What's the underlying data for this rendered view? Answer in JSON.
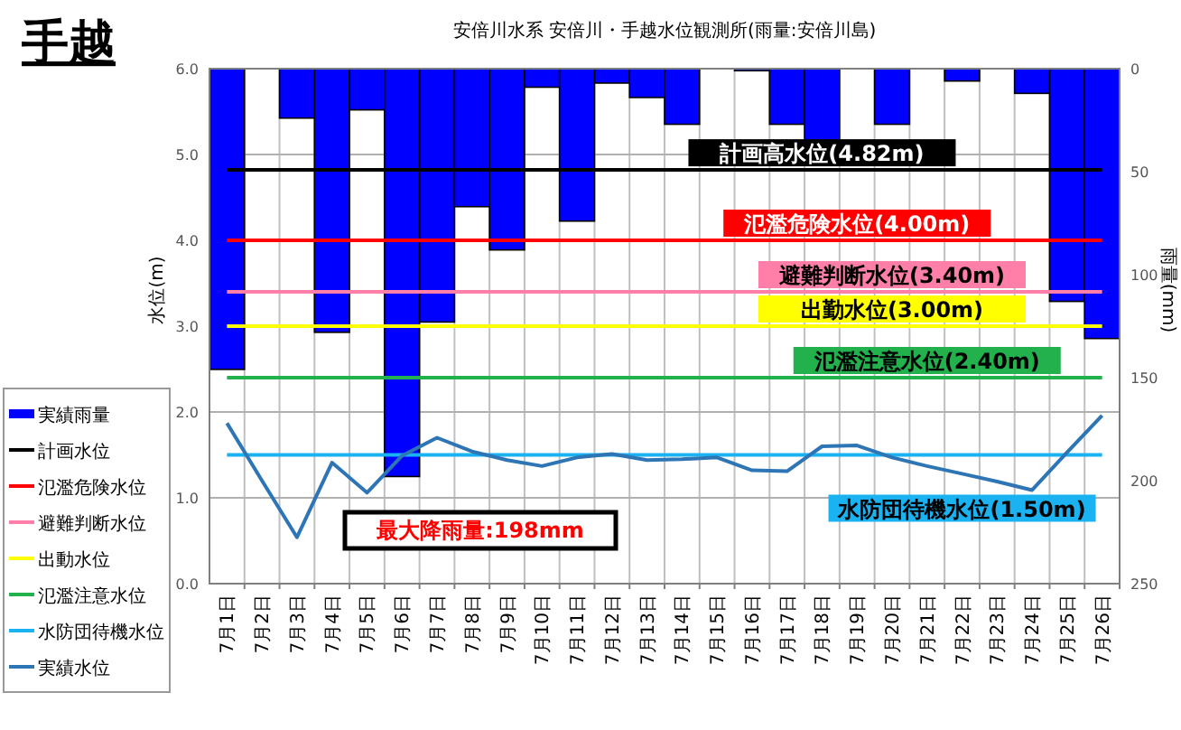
{
  "chart_data": {
    "type": "bar",
    "title": "手越",
    "subtitle": "安倍川水系 安倍川・手越水位観測所(雨量:安倍川島)",
    "ylabel": "水位(m)",
    "y2label": "雨量(mm)",
    "categories": [
      "7月1日",
      "7月2日",
      "7月3日",
      "7月4日",
      "7月5日",
      "7月6日",
      "7月7日",
      "7月8日",
      "7月9日",
      "7月10日",
      "7月11日",
      "7月12日",
      "7月13日",
      "7月14日",
      "7月15日",
      "7月16日",
      "7月17日",
      "7月18日",
      "7月19日",
      "7月20日",
      "7月21日",
      "7月22日",
      "7月23日",
      "7月24日",
      "7月25日",
      "7月26日"
    ],
    "series": [
      {
        "name": "実績雨量",
        "type": "bar",
        "axis": "y2",
        "color": "#0000ff",
        "values": [
          146,
          0,
          24,
          128,
          20,
          198,
          123,
          67,
          88,
          9,
          74,
          7,
          14,
          27,
          0,
          1,
          27,
          36,
          0,
          27,
          0,
          6,
          0,
          12,
          113,
          131
        ]
      },
      {
        "name": "計画水位",
        "type": "line",
        "color": "#000000",
        "values": [
          4.82,
          4.82,
          4.82,
          4.82,
          4.82,
          4.82,
          4.82,
          4.82,
          4.82,
          4.82,
          4.82,
          4.82,
          4.82,
          4.82,
          4.82,
          4.82,
          4.82,
          4.82,
          4.82,
          4.82,
          4.82,
          4.82,
          4.82,
          4.82,
          4.82,
          4.82
        ]
      },
      {
        "name": "氾濫危険水位",
        "type": "line",
        "color": "#ff0000",
        "values": [
          4.0,
          4.0,
          4.0,
          4.0,
          4.0,
          4.0,
          4.0,
          4.0,
          4.0,
          4.0,
          4.0,
          4.0,
          4.0,
          4.0,
          4.0,
          4.0,
          4.0,
          4.0,
          4.0,
          4.0,
          4.0,
          4.0,
          4.0,
          4.0,
          4.0,
          4.0
        ]
      },
      {
        "name": "避難判断水位",
        "type": "line",
        "color": "#ff7fa8",
        "values": [
          3.4,
          3.4,
          3.4,
          3.4,
          3.4,
          3.4,
          3.4,
          3.4,
          3.4,
          3.4,
          3.4,
          3.4,
          3.4,
          3.4,
          3.4,
          3.4,
          3.4,
          3.4,
          3.4,
          3.4,
          3.4,
          3.4,
          3.4,
          3.4,
          3.4,
          3.4
        ]
      },
      {
        "name": "出動水位",
        "type": "line",
        "color": "#ffff00",
        "values": [
          3.0,
          3.0,
          3.0,
          3.0,
          3.0,
          3.0,
          3.0,
          3.0,
          3.0,
          3.0,
          3.0,
          3.0,
          3.0,
          3.0,
          3.0,
          3.0,
          3.0,
          3.0,
          3.0,
          3.0,
          3.0,
          3.0,
          3.0,
          3.0,
          3.0,
          3.0
        ]
      },
      {
        "name": "氾濫注意水位",
        "type": "line",
        "color": "#22b14c",
        "values": [
          2.4,
          2.4,
          2.4,
          2.4,
          2.4,
          2.4,
          2.4,
          2.4,
          2.4,
          2.4,
          2.4,
          2.4,
          2.4,
          2.4,
          2.4,
          2.4,
          2.4,
          2.4,
          2.4,
          2.4,
          2.4,
          2.4,
          2.4,
          2.4,
          2.4,
          2.4
        ]
      },
      {
        "name": "水防団待機水位",
        "type": "line",
        "color": "#1ab2f0",
        "values": [
          1.5,
          1.5,
          1.5,
          1.5,
          1.5,
          1.5,
          1.5,
          1.5,
          1.5,
          1.5,
          1.5,
          1.5,
          1.5,
          1.5,
          1.5,
          1.5,
          1.5,
          1.5,
          1.5,
          1.5,
          1.5,
          1.5,
          1.5,
          1.5,
          1.5,
          1.5
        ]
      },
      {
        "name": "実績水位",
        "type": "line",
        "color": "#2e75b6",
        "values": [
          1.87,
          1.2,
          0.54,
          1.41,
          1.06,
          1.49,
          1.7,
          1.54,
          1.44,
          1.37,
          1.47,
          1.51,
          1.44,
          1.45,
          1.47,
          1.32,
          1.31,
          1.6,
          1.61,
          1.47,
          1.37,
          1.28,
          1.19,
          1.09,
          1.53,
          1.96
        ]
      }
    ],
    "ylim": [
      0,
      6
    ],
    "yticks": [
      {
        "value": 0,
        "label": "0.0"
      },
      {
        "value": 1,
        "label": "1.0"
      },
      {
        "value": 2,
        "label": "2.0"
      },
      {
        "value": 3,
        "label": "3.0"
      },
      {
        "value": 4,
        "label": "4.0"
      },
      {
        "value": 5,
        "label": "5.0"
      },
      {
        "value": 6,
        "label": "6.0"
      }
    ],
    "y2lim": [
      250,
      0
    ],
    "y2ticks": [
      0,
      50,
      100,
      150,
      200,
      250
    ],
    "grid": true,
    "legend": "left",
    "annotations": [
      {
        "text": "計画高水位(4.82m)",
        "x": "7月18日",
        "y": 4.82
      },
      {
        "text": "氾濫危険水位(4.00m)",
        "x": "7月19日",
        "y": 4.0
      },
      {
        "text": "避難判断水位(3.40m)",
        "x": "7月20日",
        "y": 3.4
      },
      {
        "text": "出勤水位(3.00m)",
        "x": "7月20日",
        "y": 3.0
      },
      {
        "text": "氾濫注意水位(2.40m)",
        "x": "7月21日",
        "y": 2.4
      },
      {
        "text": "水防団待機水位(1.50m)",
        "x": "7月22日",
        "y": 1.5
      },
      "最大降雨量:198mm"
    ]
  }
}
